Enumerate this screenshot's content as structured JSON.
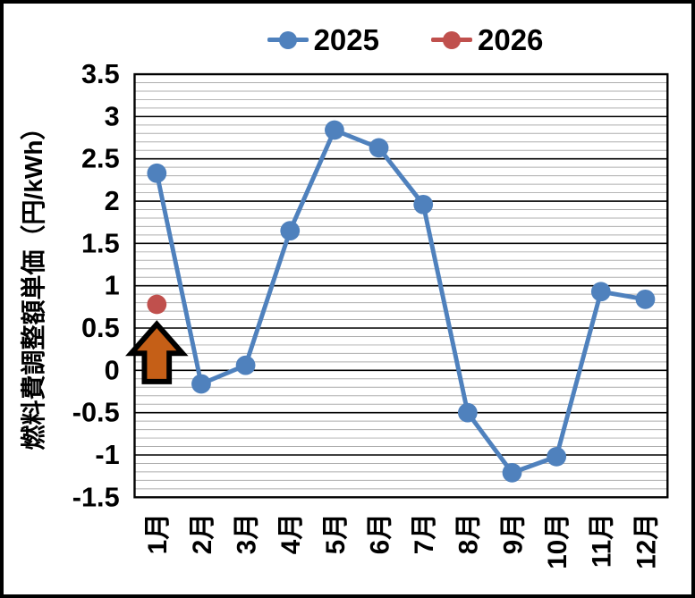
{
  "chart_data": {
    "type": "line",
    "title": "",
    "categories": [
      "1月",
      "2月",
      "3月",
      "4月",
      "5月",
      "6月",
      "7月",
      "8月",
      "9月",
      "10月",
      "11月",
      "12月"
    ],
    "series": [
      {
        "name": "2025",
        "color": "#4F81BD",
        "values": [
          2.33,
          -0.16,
          0.06,
          1.65,
          2.84,
          2.63,
          1.96,
          -0.5,
          -1.21,
          -1.02,
          0.93,
          0.84
        ]
      },
      {
        "name": "2026",
        "color": "#C0504D",
        "values": [
          0.78,
          null,
          null,
          null,
          null,
          null,
          null,
          null,
          null,
          null,
          null,
          null
        ]
      }
    ],
    "xlabel": "",
    "ylabel": "燃料費調整額単価（円/kWh）",
    "ylim": [
      -1.5,
      3.5
    ],
    "ytick_step": 0.5,
    "minor_tick_step": 0.1,
    "yticks": [
      "3.5",
      "3",
      "2.5",
      "2",
      "1.5",
      "1",
      "0.5",
      "0",
      "-0.5",
      "-1",
      "-1.5"
    ],
    "grid": "major-black-horizontal, minor-gray-horizontal",
    "legend_position": "top-center",
    "annotation": {
      "shape": "up-block-arrow",
      "fill": "#C55F17",
      "outline": "#000000",
      "at_category": "1月",
      "points_to_series": "2026"
    }
  },
  "colors": {
    "background": "#FFFFFF",
    "frame_border": "#000000",
    "plot_border": "#000000",
    "major_grid": "#000000",
    "minor_grid": "#ADADAD"
  }
}
